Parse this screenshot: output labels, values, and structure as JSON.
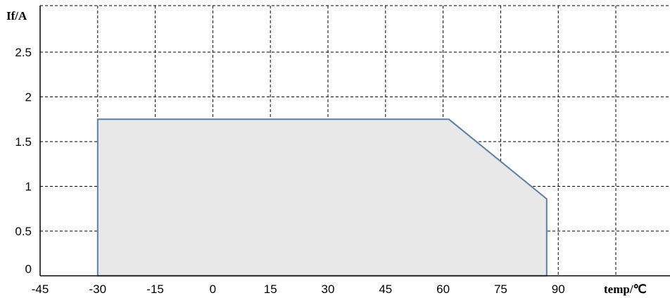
{
  "chart_data": {
    "type": "area",
    "title": "",
    "xlabel": "temp/℃",
    "ylabel": "If/A",
    "xlim": [
      -45,
      105
    ],
    "ylim": [
      0,
      2.5
    ],
    "x_ticks": [
      -45,
      -30,
      -15,
      0,
      15,
      30,
      45,
      60,
      75,
      90
    ],
    "y_ticks": [
      0,
      0.5,
      1,
      1.5,
      2,
      2.5
    ],
    "grid": true,
    "legend": "none",
    "colors": {
      "fill": "#e8e8e8",
      "outline": "#5b7fa6",
      "grid": "#000000"
    },
    "series": [
      {
        "x": [
          -30,
          -30,
          61.5,
          87,
          87
        ],
        "y": [
          -0.1,
          1.75,
          1.75,
          0.86,
          -0.1
        ]
      }
    ]
  }
}
